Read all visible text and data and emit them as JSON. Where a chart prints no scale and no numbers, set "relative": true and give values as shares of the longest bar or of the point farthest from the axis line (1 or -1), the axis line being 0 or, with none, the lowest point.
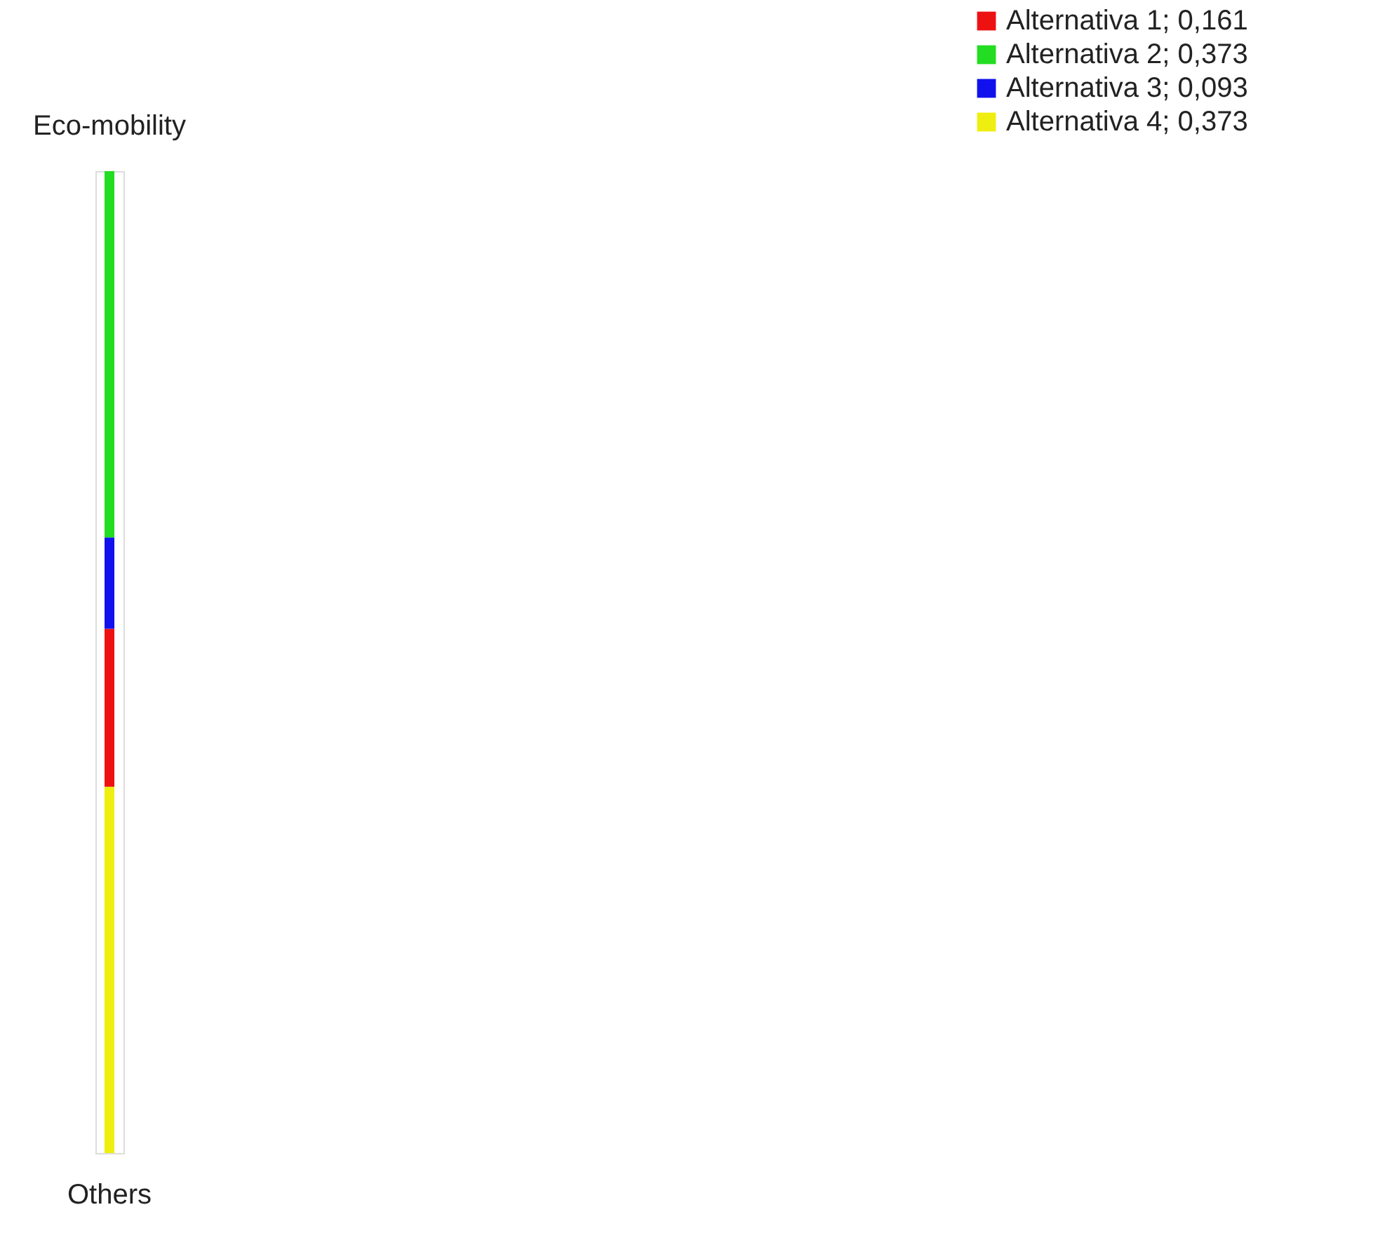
{
  "chart_data": {
    "type": "bar",
    "stacked": true,
    "relative": true,
    "categories": [
      null
    ],
    "legend": "top right",
    "series": [
      {
        "name": "Alternativa 4;  0,373",
        "color": "#eeee11",
        "values": [
          0.373
        ]
      },
      {
        "name": "Alternativa 1;  0,161",
        "color": "#ee1111",
        "values": [
          0.161
        ]
      },
      {
        "name": "Alternativa 3;  0,093",
        "color": "#1111ee",
        "values": [
          0.093
        ]
      },
      {
        "name": "Alternativa 2;  0,373",
        "color": "#22dd22",
        "values": [
          0.373
        ]
      }
    ],
    "annotations": [
      {
        "text": "Eco-mobility",
        "y": 1
      },
      {
        "text": "Others",
        "y": 0
      }
    ]
  }
}
